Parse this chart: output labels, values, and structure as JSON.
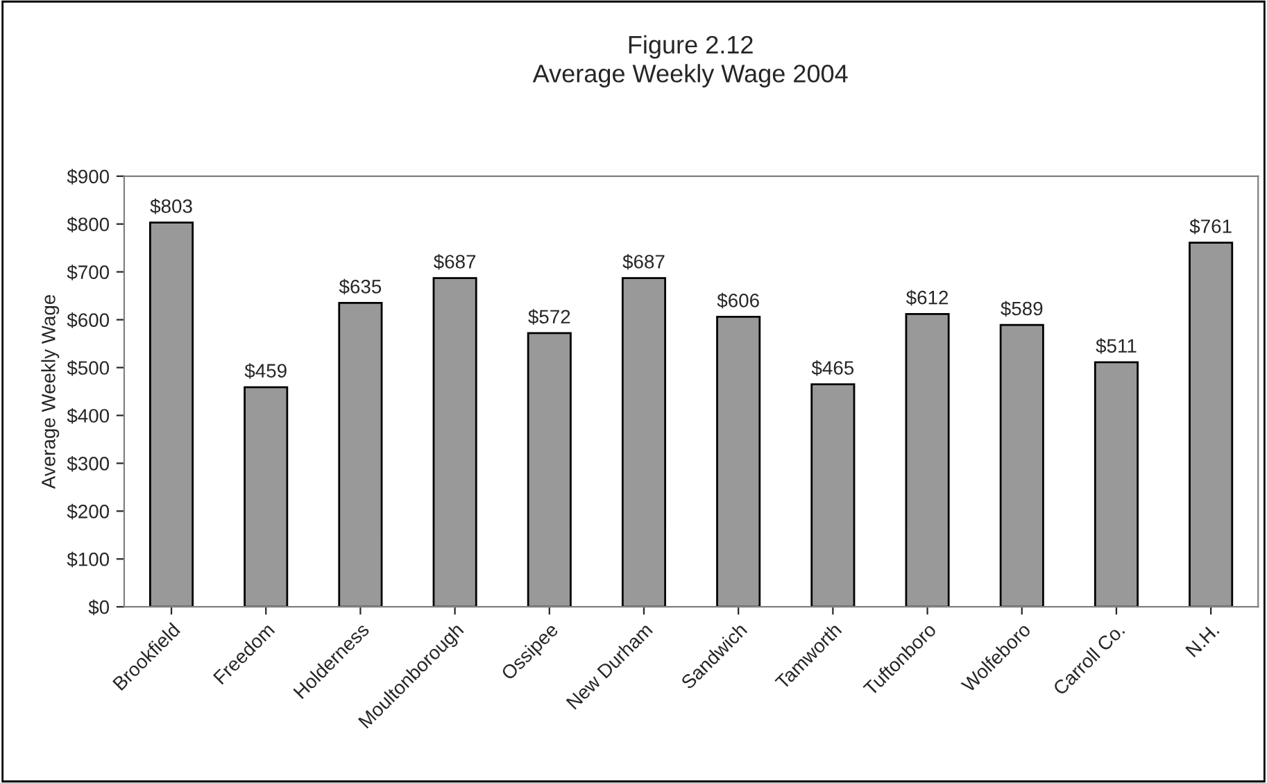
{
  "chart_data": {
    "type": "bar",
    "title": "Figure 2.12\nAverage Weekly Wage 2004",
    "ylabel": "Average Weekly Wage",
    "categories": [
      "Brookfield",
      "Freedom",
      "Holderness",
      "Moultonborough",
      "Ossipee",
      "New Durham",
      "Sandwich",
      "Tamworth",
      "Tuftonboro",
      "Wolfeboro",
      "Carroll Co.",
      "N.H."
    ],
    "values": [
      803,
      459,
      635,
      687,
      572,
      687,
      606,
      465,
      612,
      589,
      511,
      761
    ],
    "value_labels": [
      "$803",
      "$459",
      "$635",
      "$687",
      "$572",
      "$687",
      "$606",
      "$465",
      "$612",
      "$589",
      "$511",
      "$761"
    ],
    "color": "#999999",
    "ylim": [
      0,
      900
    ],
    "yticks": [
      {
        "value": 0,
        "label": "$0"
      },
      {
        "value": 100,
        "label": "$100"
      },
      {
        "value": 200,
        "label": "$200"
      },
      {
        "value": 300,
        "label": "$300"
      },
      {
        "value": 400,
        "label": "$400"
      },
      {
        "value": 500,
        "label": "$500"
      },
      {
        "value": 600,
        "label": "$600"
      },
      {
        "value": 700,
        "label": "$700"
      },
      {
        "value": 800,
        "label": "$800"
      },
      {
        "value": 900,
        "label": "$900"
      }
    ],
    "grid": false,
    "legend": false
  }
}
